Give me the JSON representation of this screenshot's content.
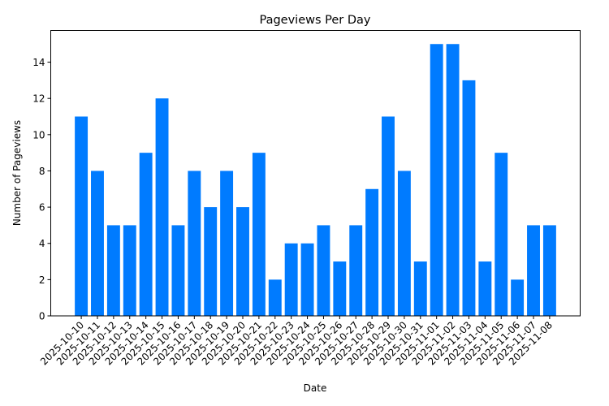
{
  "chart_data": {
    "type": "bar",
    "title": "Pageviews Per Day",
    "xlabel": "Date",
    "ylabel": "Number of Pageviews",
    "categories": [
      "2025-10-10",
      "2025-10-11",
      "2025-10-12",
      "2025-10-13",
      "2025-10-14",
      "2025-10-15",
      "2025-10-16",
      "2025-10-17",
      "2025-10-18",
      "2025-10-19",
      "2025-10-20",
      "2025-10-21",
      "2025-10-22",
      "2025-10-23",
      "2025-10-24",
      "2025-10-25",
      "2025-10-26",
      "2025-10-27",
      "2025-10-28",
      "2025-10-29",
      "2025-10-30",
      "2025-10-31",
      "2025-11-01",
      "2025-11-02",
      "2025-11-03",
      "2025-11-04",
      "2025-11-05",
      "2025-11-06",
      "2025-11-07",
      "2025-11-08"
    ],
    "values": [
      11,
      8,
      5,
      5,
      9,
      12,
      5,
      8,
      6,
      8,
      6,
      9,
      2,
      4,
      4,
      5,
      3,
      5,
      7,
      11,
      8,
      3,
      15,
      15,
      13,
      3,
      9,
      2,
      5,
      5
    ],
    "ylim": [
      0,
      15.75
    ],
    "yticks": [
      0,
      2,
      4,
      6,
      8,
      10,
      12,
      14
    ],
    "grid": false,
    "legend": null,
    "bar_color": "#007bff",
    "xtick_rotation": -45
  }
}
